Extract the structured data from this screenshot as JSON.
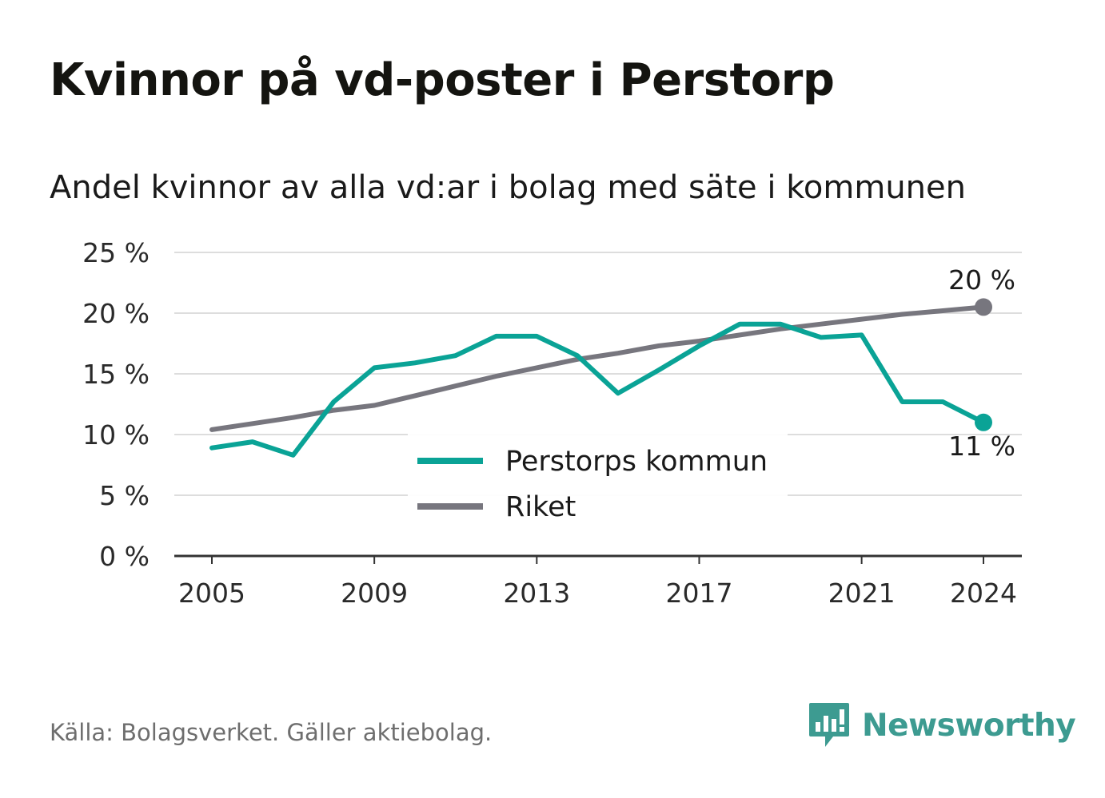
{
  "header": {
    "title": "Kvinnor på vd-poster i Perstorp",
    "subtitle": "Andel kvinnor av alla vd:ar i bolag med säte i kommunen"
  },
  "footer": {
    "source": "Källa: Bolagsverket. Gäller aktiebolag.",
    "brand": "Newsworthy"
  },
  "colors": {
    "perstorp": "#0aa396",
    "riket": "#77767e",
    "grid": "#dddddd",
    "axis": "#333333",
    "brand": "#3d9b91"
  },
  "chart_data": {
    "type": "line",
    "title": "Kvinnor på vd-poster i Perstorp",
    "subtitle": "Andel kvinnor av alla vd:ar i bolag med säte i kommunen",
    "x": [
      2005,
      2006,
      2007,
      2008,
      2009,
      2010,
      2011,
      2012,
      2013,
      2014,
      2015,
      2016,
      2017,
      2018,
      2019,
      2020,
      2021,
      2022,
      2023,
      2024
    ],
    "x_ticks": [
      2005,
      2009,
      2013,
      2017,
      2021,
      2024
    ],
    "y_ticks": [
      0,
      5,
      10,
      15,
      20,
      25
    ],
    "y_tick_labels": [
      "0 %",
      "5 %",
      "10 %",
      "15 %",
      "20 %",
      "25 %"
    ],
    "ylim": [
      0,
      25
    ],
    "xlim": [
      2004,
      2025
    ],
    "grid": true,
    "legend_position": "center",
    "series": [
      {
        "name": "Perstorps kommun",
        "values": [
          8.9,
          9.4,
          8.3,
          12.7,
          15.5,
          15.9,
          16.5,
          18.1,
          18.1,
          16.5,
          13.4,
          15.3,
          17.3,
          19.1,
          19.1,
          18.0,
          18.2,
          12.7,
          12.7,
          11.0
        ],
        "end_label": "11 %"
      },
      {
        "name": "Riket",
        "values": [
          10.4,
          10.9,
          11.4,
          12.0,
          12.4,
          13.2,
          14.0,
          14.8,
          15.5,
          16.2,
          16.7,
          17.3,
          17.7,
          18.2,
          18.7,
          19.1,
          19.5,
          19.9,
          20.2,
          20.5
        ],
        "end_label": "20 %"
      }
    ]
  }
}
